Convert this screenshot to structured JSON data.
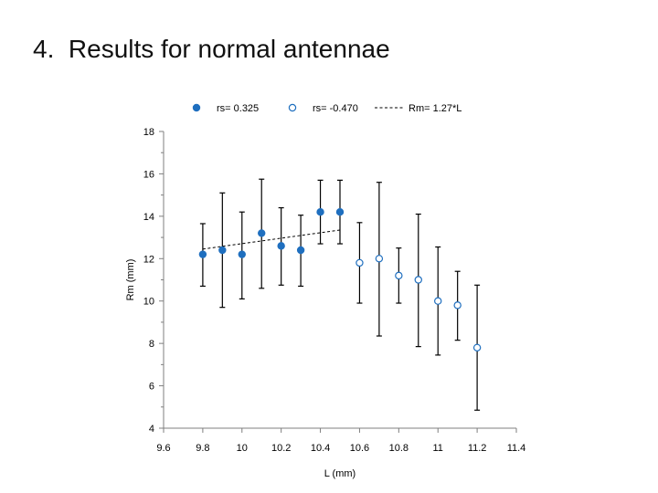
{
  "slide": {
    "title": "4.  Results for normal antennae"
  },
  "chart_data": {
    "type": "scatter",
    "title": "",
    "xlabel": "L (mm)",
    "ylabel": "Rm (mm)",
    "xlim": [
      9.6,
      11.4
    ],
    "ylim": [
      4,
      18
    ],
    "xticks": [
      "9.6",
      "9.8",
      "10",
      "10.2",
      "10.4",
      "10.6",
      "10.8",
      "11",
      "11.2",
      "11.4"
    ],
    "yticks": [
      "4",
      "6",
      "8",
      "10",
      "12",
      "14",
      "16",
      "18"
    ],
    "grid": false,
    "legend_position": "top",
    "series": [
      {
        "name": "rs= 0.325",
        "marker": "filled-circle",
        "color": "#1f6fbf",
        "points": [
          {
            "x": 9.8,
            "y": 12.2,
            "err_low": 10.7,
            "err_high": 13.65
          },
          {
            "x": 9.9,
            "y": 12.4,
            "err_low": 9.7,
            "err_high": 15.1
          },
          {
            "x": 10.0,
            "y": 12.2,
            "err_low": 10.1,
            "err_high": 14.2
          },
          {
            "x": 10.1,
            "y": 13.2,
            "err_low": 10.6,
            "err_high": 15.75
          },
          {
            "x": 10.2,
            "y": 12.6,
            "err_low": 10.75,
            "err_high": 14.4
          },
          {
            "x": 10.3,
            "y": 12.4,
            "err_low": 10.7,
            "err_high": 14.05
          },
          {
            "x": 10.4,
            "y": 14.2,
            "err_low": 12.7,
            "err_high": 15.7
          },
          {
            "x": 10.5,
            "y": 14.2,
            "err_low": 12.7,
            "err_high": 15.7
          }
        ]
      },
      {
        "name": "rs= -0.470",
        "marker": "open-circle",
        "color": "#1f6fbf",
        "points": [
          {
            "x": 10.6,
            "y": 11.8,
            "err_low": 9.9,
            "err_high": 13.7
          },
          {
            "x": 10.7,
            "y": 12.0,
            "err_low": 8.35,
            "err_high": 15.6
          },
          {
            "x": 10.8,
            "y": 11.2,
            "err_low": 9.9,
            "err_high": 12.5
          },
          {
            "x": 10.9,
            "y": 11.0,
            "err_low": 7.85,
            "err_high": 14.1
          },
          {
            "x": 11.0,
            "y": 10.0,
            "err_low": 7.45,
            "err_high": 12.55
          },
          {
            "x": 11.1,
            "y": 9.8,
            "err_low": 8.15,
            "err_high": 11.4
          },
          {
            "x": 11.2,
            "y": 7.8,
            "err_low": 4.85,
            "err_high": 10.75
          }
        ]
      },
      {
        "name": "Rm= 1.27*L",
        "type": "line",
        "style": "dashed",
        "color": "#000000",
        "points": [
          {
            "x": 9.8,
            "y": 12.45
          },
          {
            "x": 10.5,
            "y": 13.35
          }
        ]
      }
    ]
  }
}
